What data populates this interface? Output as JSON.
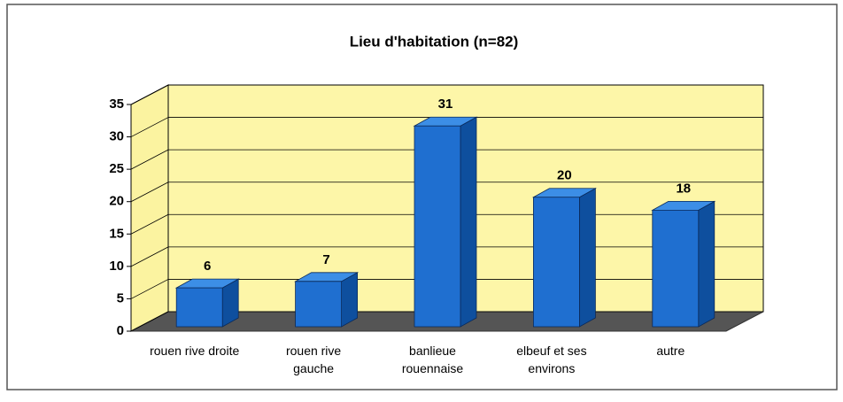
{
  "chart_data": {
    "type": "bar",
    "title": "Lieu d'habitation (n=82)",
    "categories": [
      "rouen rive droite",
      "rouen rive gauche",
      "banlieue rouennaise",
      "elbeuf et ses environs",
      "autre"
    ],
    "values": [
      6,
      7,
      31,
      20,
      18
    ],
    "color": "#1f6fd0",
    "ylim": [
      0,
      35
    ],
    "yticks": [
      0,
      5,
      10,
      15,
      20,
      25,
      30,
      35
    ],
    "grid": true
  }
}
